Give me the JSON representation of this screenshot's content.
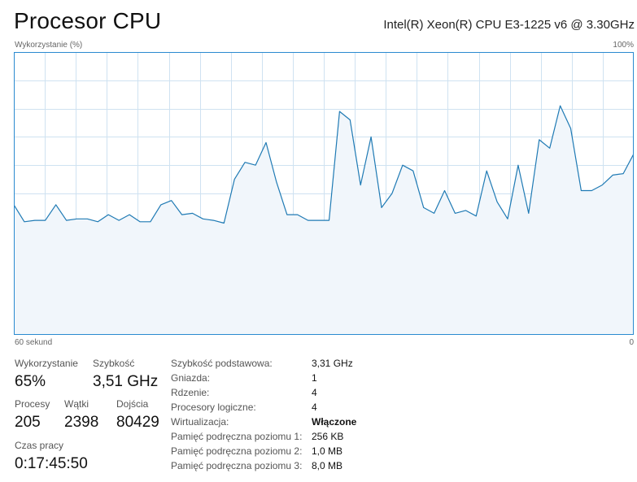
{
  "header": {
    "title": "Procesor CPU",
    "cpu_model": "Intel(R) Xeon(R) CPU E3-1225 v6 @ 3.30GHz"
  },
  "graph": {
    "y_label": "Wykorzystanie (%)",
    "y_max_label": "100%",
    "x_left_label": "60 sekund",
    "x_right_label": "0",
    "line_color": "#1f7ab4",
    "fill_color": "#f1f6fb",
    "grid_color": "#cfe2f1",
    "border_color": "#2a8ad0"
  },
  "chart_data": {
    "type": "area",
    "x_range_seconds": [
      60,
      0
    ],
    "ylim": [
      0,
      100
    ],
    "values": [
      46,
      40,
      40.5,
      40.5,
      46,
      40.5,
      41,
      41,
      40,
      42.5,
      40.5,
      42.5,
      40,
      40,
      46,
      47.5,
      42.5,
      43,
      41,
      40.5,
      39.5,
      55,
      61,
      60,
      68,
      54,
      42.5,
      42.5,
      40.5,
      40.5,
      40.5,
      79,
      76,
      53,
      70,
      45,
      50,
      60,
      58,
      45,
      43,
      51,
      43,
      44,
      42,
      58,
      47,
      41,
      60,
      43,
      69,
      66,
      81,
      73,
      51,
      51,
      53,
      56.5,
      57,
      64
    ]
  },
  "stats": {
    "usage": {
      "label": "Wykorzystanie",
      "value": "65%"
    },
    "speed": {
      "label": "Szybkość",
      "value": "3,51 GHz"
    },
    "processes": {
      "label": "Procesy",
      "value": "205"
    },
    "threads": {
      "label": "Wątki",
      "value": "2398"
    },
    "handles": {
      "label": "Dojścia",
      "value": "80429"
    },
    "uptime": {
      "label": "Czas pracy",
      "value": "0:17:45:50"
    }
  },
  "details": [
    {
      "key": "Szybkość podstawowa:",
      "value": "3,31 GHz",
      "bold": false
    },
    {
      "key": "Gniazda:",
      "value": "1",
      "bold": false
    },
    {
      "key": "Rdzenie:",
      "value": "4",
      "bold": false
    },
    {
      "key": "Procesory logiczne:",
      "value": "4",
      "bold": false
    },
    {
      "key": "Wirtualizacja:",
      "value": "Włączone",
      "bold": true
    },
    {
      "key": "Pamięć podręczna poziomu 1:",
      "value": "256 KB",
      "bold": false
    },
    {
      "key": "Pamięć podręczna poziomu 2:",
      "value": "1,0 MB",
      "bold": false
    },
    {
      "key": "Pamięć podręczna poziomu 3:",
      "value": "8,0 MB",
      "bold": false
    }
  ]
}
